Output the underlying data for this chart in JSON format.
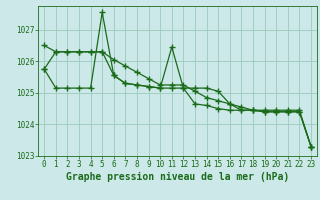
{
  "title": "Graphe pression niveau de la mer (hPa)",
  "background_color": "#cce8e8",
  "grid_color": "#99ccbb",
  "line_color": "#1a6b1a",
  "x": [
    0,
    1,
    2,
    3,
    4,
    5,
    6,
    7,
    8,
    9,
    10,
    11,
    12,
    13,
    14,
    15,
    16,
    17,
    18,
    19,
    20,
    21,
    22,
    23
  ],
  "line1": [
    1025.75,
    1025.15,
    1025.15,
    1025.15,
    1025.15,
    1027.55,
    1025.55,
    1025.3,
    1025.25,
    1025.2,
    1025.15,
    1026.45,
    1025.15,
    1024.65,
    1024.6,
    1024.5,
    1024.45,
    1024.45,
    1024.45,
    1024.45,
    1024.45,
    1024.45,
    1024.45,
    1023.3
  ],
  "line2": [
    1026.5,
    1026.3,
    1026.3,
    1026.3,
    1026.3,
    1026.3,
    1026.05,
    1025.85,
    1025.65,
    1025.45,
    1025.25,
    1025.25,
    1025.25,
    1025.05,
    1024.85,
    1024.75,
    1024.65,
    1024.55,
    1024.45,
    1024.4,
    1024.4,
    1024.4,
    1024.4,
    1023.3
  ],
  "line3": [
    1025.75,
    1026.3,
    1026.3,
    1026.3,
    1026.3,
    1026.3,
    1025.55,
    1025.3,
    1025.25,
    1025.2,
    1025.15,
    1025.15,
    1025.15,
    1025.15,
    1025.15,
    1025.05,
    1024.65,
    1024.45,
    1024.45,
    1024.4,
    1024.4,
    1024.4,
    1024.4,
    1023.3
  ],
  "ylim": [
    1023.0,
    1027.75
  ],
  "yticks": [
    1023,
    1024,
    1025,
    1026,
    1027
  ],
  "xlim": [
    -0.5,
    23.5
  ],
  "xticks": [
    0,
    1,
    2,
    3,
    4,
    5,
    6,
    7,
    8,
    9,
    10,
    11,
    12,
    13,
    14,
    15,
    16,
    17,
    18,
    19,
    20,
    21,
    22,
    23
  ],
  "marker": "+",
  "markersize": 4,
  "linewidth": 0.9,
  "title_fontsize": 7.0,
  "tick_fontsize": 5.5
}
